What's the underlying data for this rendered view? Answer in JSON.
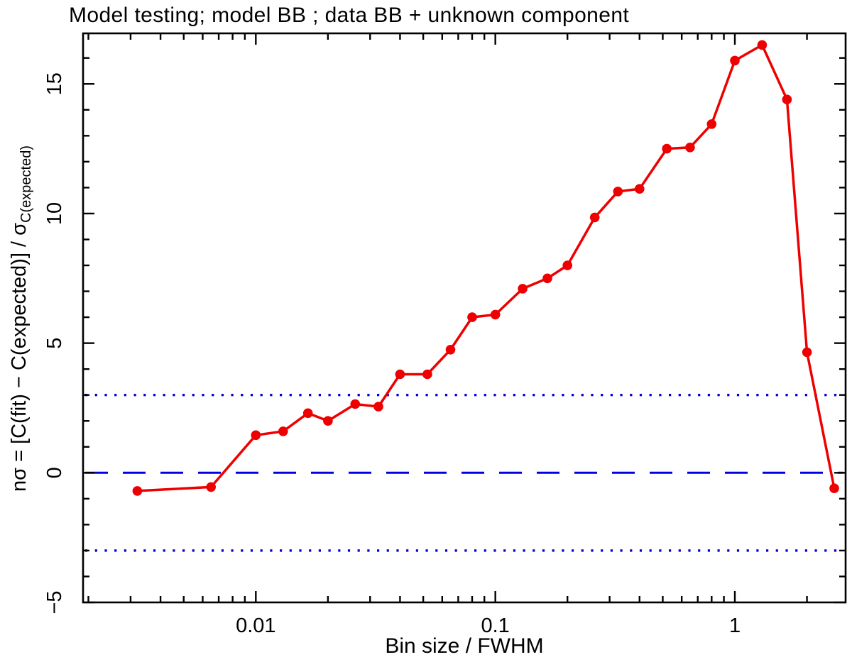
{
  "title": "Model testing; model BB ; data BB + unknown component",
  "axes": {
    "xlabel": "Bin size / FWHM",
    "ylabel": {
      "main": "nσ = [C(fit) − C(expected)] / σ",
      "sub": "C(expected)"
    }
  },
  "chart_data": {
    "type": "line",
    "title": "Model testing; model BB ; data BB + unknown component",
    "xlabel": "Bin size / FWHM",
    "ylabel": "nσ = [C(fit) − C(expected)] / σ_C(expected)",
    "x_scale": "log",
    "y_scale": "linear",
    "xlim": [
      0.0019,
      2.9
    ],
    "ylim": [
      -5,
      16.95
    ],
    "grid": false,
    "legend": false,
    "x_major_ticks": [
      {
        "value": 0.01,
        "label": "0.01"
      },
      {
        "value": 0.1,
        "label": "0.1"
      },
      {
        "value": 1,
        "label": "1"
      }
    ],
    "y_major_ticks": [
      {
        "value": -5,
        "label": "−5"
      },
      {
        "value": 0,
        "label": "0"
      },
      {
        "value": 5,
        "label": "5"
      },
      {
        "value": 10,
        "label": "10"
      },
      {
        "value": 15,
        "label": "15"
      }
    ],
    "y_minor_step": 1,
    "frame_color": "#000000",
    "reference_lines": [
      {
        "name": "zero-line",
        "y": 0,
        "style": "dashed",
        "color": "#0000e0"
      },
      {
        "name": "plus-3-sigma-line",
        "y": 3,
        "style": "dotted",
        "color": "#0000e0"
      },
      {
        "name": "minus-3-sigma-line",
        "y": -3,
        "style": "dotted",
        "color": "#0000e0"
      }
    ],
    "series": [
      {
        "name": "n-sigma deviation",
        "color": "#ee0000",
        "marker": "circle",
        "points": [
          [
            0.0032,
            -0.7
          ],
          [
            0.0065,
            -0.55
          ],
          [
            0.01,
            1.45
          ],
          [
            0.013,
            1.6
          ],
          [
            0.0165,
            2.3
          ],
          [
            0.02,
            2.0
          ],
          [
            0.026,
            2.65
          ],
          [
            0.0325,
            2.55
          ],
          [
            0.04,
            3.8
          ],
          [
            0.052,
            3.8
          ],
          [
            0.065,
            4.75
          ],
          [
            0.08,
            6.0
          ],
          [
            0.1,
            6.1
          ],
          [
            0.13,
            7.1
          ],
          [
            0.165,
            7.5
          ],
          [
            0.2,
            8.0
          ],
          [
            0.26,
            9.85
          ],
          [
            0.325,
            10.85
          ],
          [
            0.4,
            10.95
          ],
          [
            0.52,
            12.5
          ],
          [
            0.65,
            12.55
          ],
          [
            0.8,
            13.45
          ],
          [
            1.0,
            15.9
          ],
          [
            1.3,
            16.5
          ],
          [
            1.65,
            14.4
          ],
          [
            2.0,
            4.65
          ],
          [
            2.6,
            -0.6
          ]
        ]
      }
    ]
  }
}
